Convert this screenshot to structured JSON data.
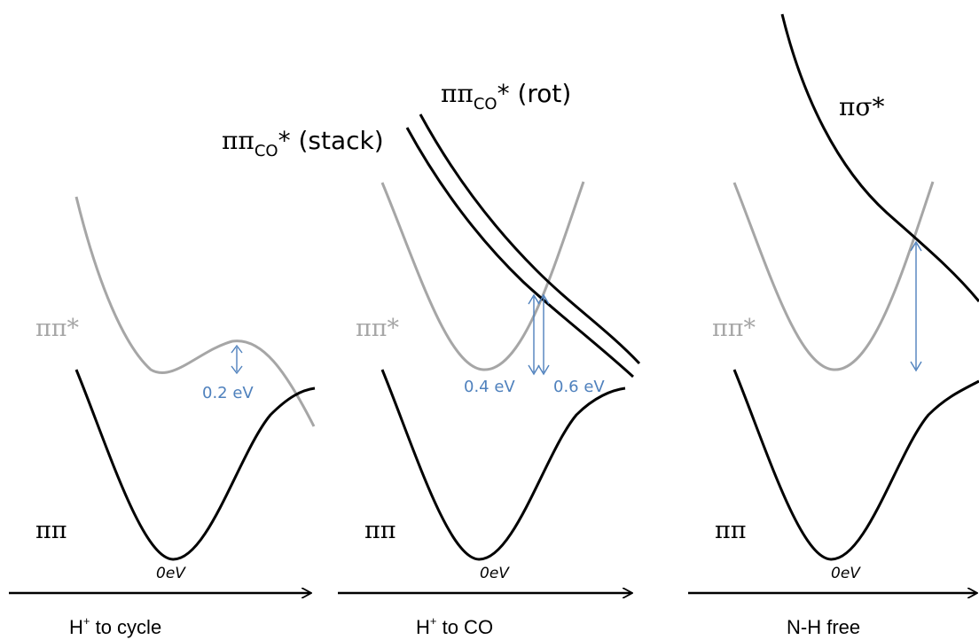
{
  "colors": {
    "ground_curve": "#000000",
    "excited_curve": "#a6a6a6",
    "annotation": "#4f81bd"
  },
  "panels": [
    {
      "id": "h-to-cycle",
      "ground_label": "ππ",
      "excited_label": "ππ*",
      "zero_label": "0eV",
      "axis_label_main": "H",
      "axis_label_sup": "+",
      "axis_label_rest": " to cycle",
      "gaps": [
        {
          "label": "0.2 eV"
        }
      ]
    },
    {
      "id": "h-to-co",
      "ground_label": "ππ",
      "excited_label": "ππ*",
      "zero_label": "0eV",
      "axis_label_main": "H",
      "axis_label_sup": "+",
      "axis_label_rest": " to CO",
      "gaps": [
        {
          "label": "0.4 eV"
        },
        {
          "label": "0.6 eV"
        }
      ],
      "states": [
        {
          "main": "ππ",
          "sub": "CO",
          "rest": "* (stack)"
        },
        {
          "main": "ππ",
          "sub": "CO",
          "rest": "* (rot)"
        }
      ]
    },
    {
      "id": "nh-free",
      "ground_label": "ππ",
      "excited_label": "ππ*",
      "zero_label": "0eV",
      "axis_label_main": "N-H free",
      "states": [
        {
          "main": "πσ*"
        }
      ]
    }
  ]
}
